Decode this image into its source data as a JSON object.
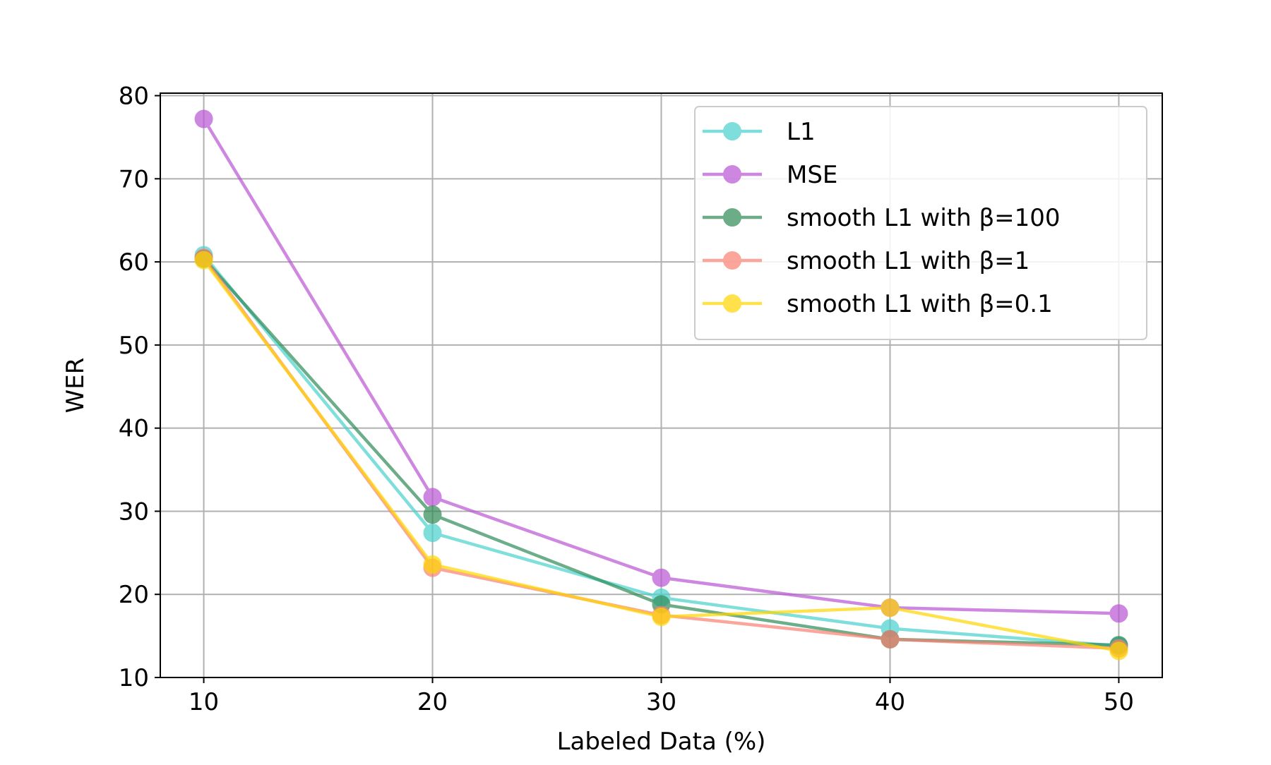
{
  "chart_data": {
    "type": "line",
    "title": "",
    "xlabel": "Labeled Data (%)",
    "ylabel": "WER",
    "x": [
      10,
      20,
      30,
      40,
      50
    ],
    "x_ticks": [
      10,
      20,
      30,
      40,
      50
    ],
    "y_ticks": [
      10,
      20,
      30,
      40,
      50,
      60,
      70,
      80
    ],
    "xlim": [
      8.1,
      51.9
    ],
    "ylim": [
      10,
      80.3
    ],
    "grid": true,
    "legend_position": "top-right",
    "series": [
      {
        "name": "L1",
        "color": "#48D1CC",
        "values": [
          60.8,
          27.4,
          19.6,
          15.9,
          13.8
        ]
      },
      {
        "name": "MSE",
        "color": "#BA55D3",
        "values": [
          77.2,
          31.7,
          22.0,
          18.4,
          17.7
        ]
      },
      {
        "name": "smooth L1 with β=100",
        "color": "#2E8B57",
        "values": [
          60.4,
          29.6,
          18.8,
          14.6,
          13.9
        ]
      },
      {
        "name": "smooth L1 with β=1",
        "color": "#FA8072",
        "values": [
          60.5,
          23.2,
          17.5,
          14.6,
          13.5
        ]
      },
      {
        "name": "smooth L1 with β=0.1",
        "color": "#FFD700",
        "values": [
          60.2,
          23.6,
          17.3,
          18.4,
          13.2
        ]
      }
    ]
  }
}
